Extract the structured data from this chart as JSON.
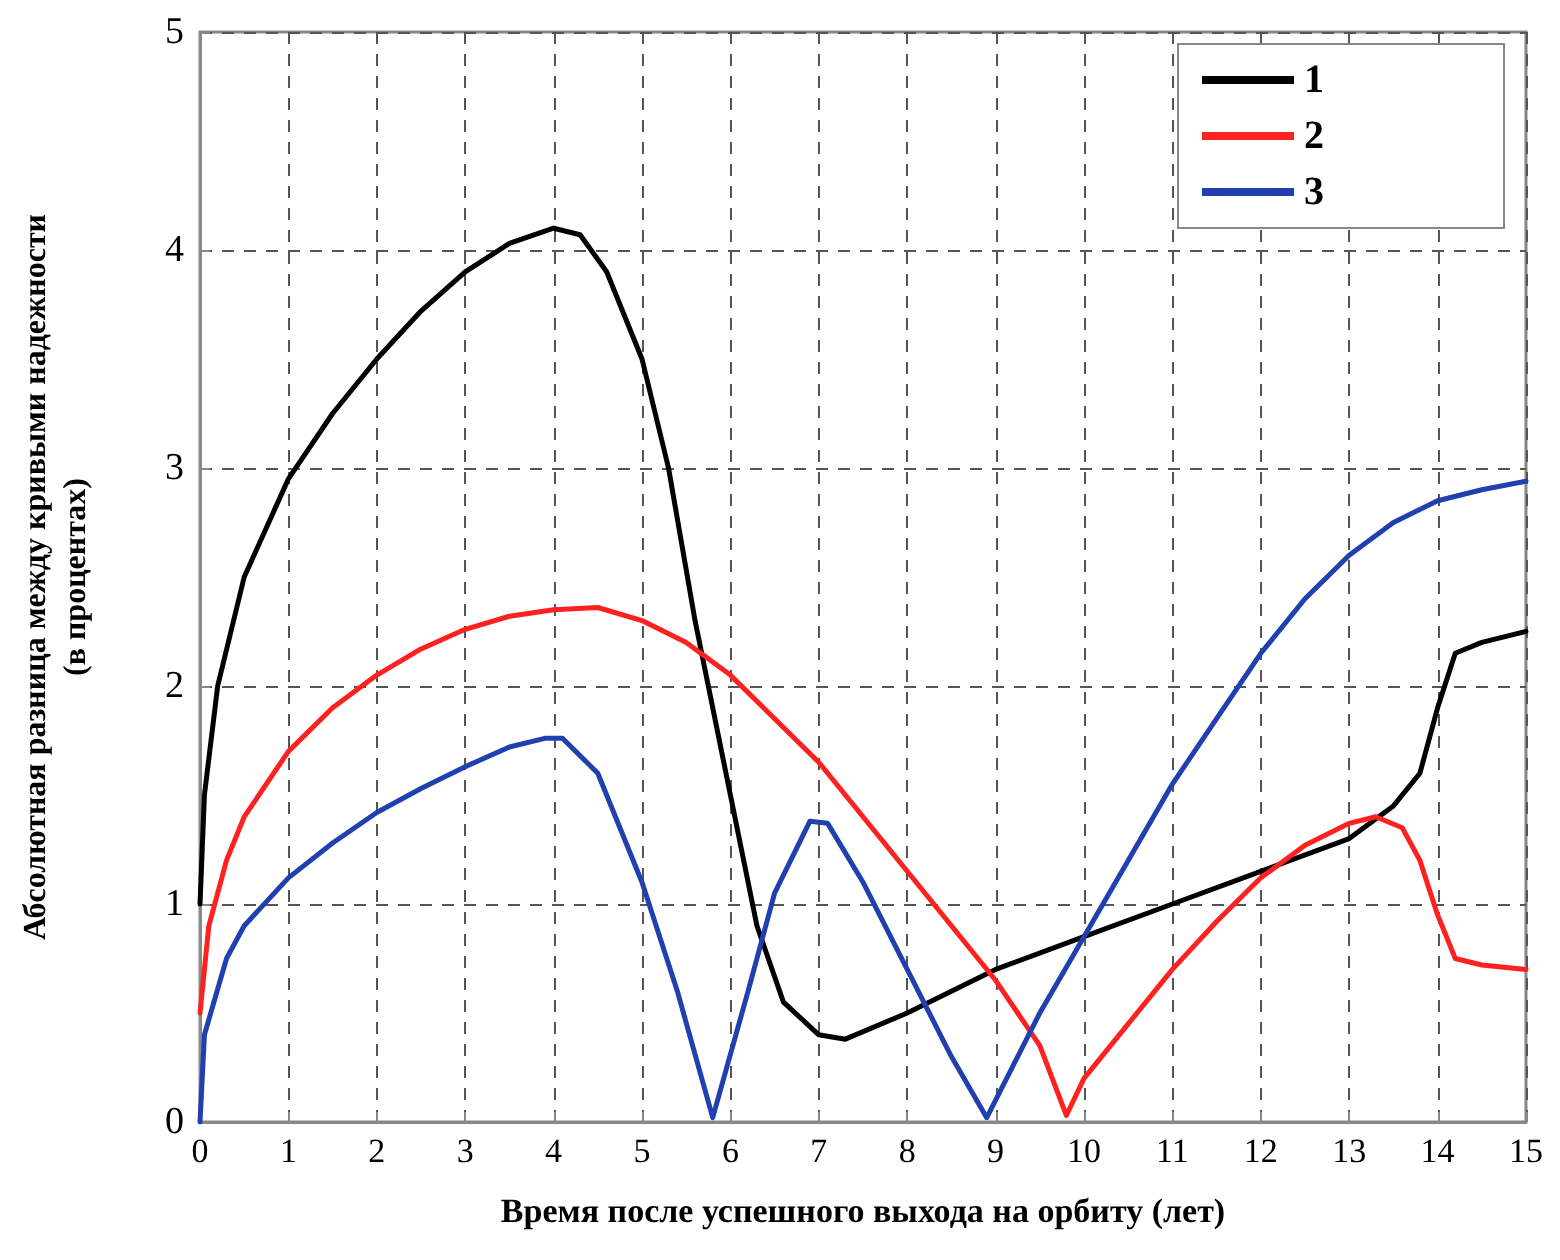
{
  "chart_data": {
    "type": "line",
    "xlabel": "Время после успешного выхода на орбиту (лет)",
    "ylabel": "Абсолютная разница между кривыми надежности\n(в процентах)",
    "xlim": [
      0,
      15
    ],
    "xticks": [
      0,
      1,
      2,
      3,
      4,
      5,
      6,
      7,
      8,
      9,
      10,
      11,
      12,
      13,
      14,
      15
    ],
    "ylim": [
      0,
      5
    ],
    "yticks": [
      0,
      1,
      2,
      3,
      4,
      5
    ],
    "grid": true,
    "legend": "top right",
    "marker": "none",
    "line_style": "solid",
    "series": [
      {
        "name": "1",
        "color": "#000000",
        "x": [
          0,
          0.05,
          0.2,
          0.5,
          1,
          1.5,
          2,
          2.5,
          3,
          3.5,
          4,
          4.3,
          4.6,
          5,
          5.3,
          5.6,
          6,
          6.3,
          6.6,
          7,
          7.3,
          8,
          9,
          10,
          11,
          12,
          13,
          13.5,
          13.8,
          14,
          14.2,
          14.5,
          15
        ],
        "values": [
          1.0,
          1.5,
          2.0,
          2.5,
          2.95,
          3.25,
          3.5,
          3.72,
          3.9,
          4.03,
          4.1,
          4.07,
          3.9,
          3.5,
          3.0,
          2.3,
          1.5,
          0.9,
          0.55,
          0.4,
          0.38,
          0.5,
          0.7,
          0.85,
          1.0,
          1.15,
          1.3,
          1.45,
          1.6,
          1.9,
          2.15,
          2.2,
          2.25
        ]
      },
      {
        "name": "2",
        "color": "#ff2020",
        "x": [
          0,
          0.1,
          0.3,
          0.5,
          1,
          1.5,
          2,
          2.5,
          3,
          3.5,
          4,
          4.5,
          5,
          5.5,
          6,
          6.5,
          7,
          7.5,
          8,
          8.5,
          9,
          9.5,
          9.8,
          10,
          10.5,
          11,
          11.5,
          12,
          12.5,
          13,
          13.3,
          13.6,
          13.8,
          14,
          14.2,
          14.5,
          15
        ],
        "values": [
          0.5,
          0.9,
          1.2,
          1.4,
          1.7,
          1.9,
          2.05,
          2.17,
          2.26,
          2.32,
          2.35,
          2.36,
          2.3,
          2.2,
          2.05,
          1.85,
          1.65,
          1.4,
          1.15,
          0.9,
          0.65,
          0.35,
          0.03,
          0.2,
          0.45,
          0.7,
          0.92,
          1.12,
          1.27,
          1.37,
          1.4,
          1.35,
          1.2,
          0.95,
          0.75,
          0.72,
          0.7
        ]
      },
      {
        "name": "3",
        "color": "#2040b0",
        "x": [
          0,
          0.05,
          0.3,
          0.5,
          1,
          1.5,
          2,
          2.5,
          3,
          3.5,
          3.9,
          4.1,
          4.5,
          5,
          5.4,
          5.8,
          6.2,
          6.5,
          6.9,
          7.1,
          7.5,
          8,
          8.5,
          8.9,
          9.5,
          10,
          10.5,
          11,
          11.5,
          12,
          12.5,
          13,
          13.5,
          14,
          14.5,
          15
        ],
        "values": [
          0,
          0.4,
          0.75,
          0.9,
          1.12,
          1.28,
          1.42,
          1.53,
          1.63,
          1.72,
          1.76,
          1.76,
          1.6,
          1.1,
          0.6,
          0.02,
          0.6,
          1.05,
          1.38,
          1.37,
          1.1,
          0.7,
          0.3,
          0.02,
          0.5,
          0.85,
          1.2,
          1.55,
          1.85,
          2.15,
          2.4,
          2.6,
          2.75,
          2.85,
          2.9,
          2.94
        ]
      }
    ]
  }
}
